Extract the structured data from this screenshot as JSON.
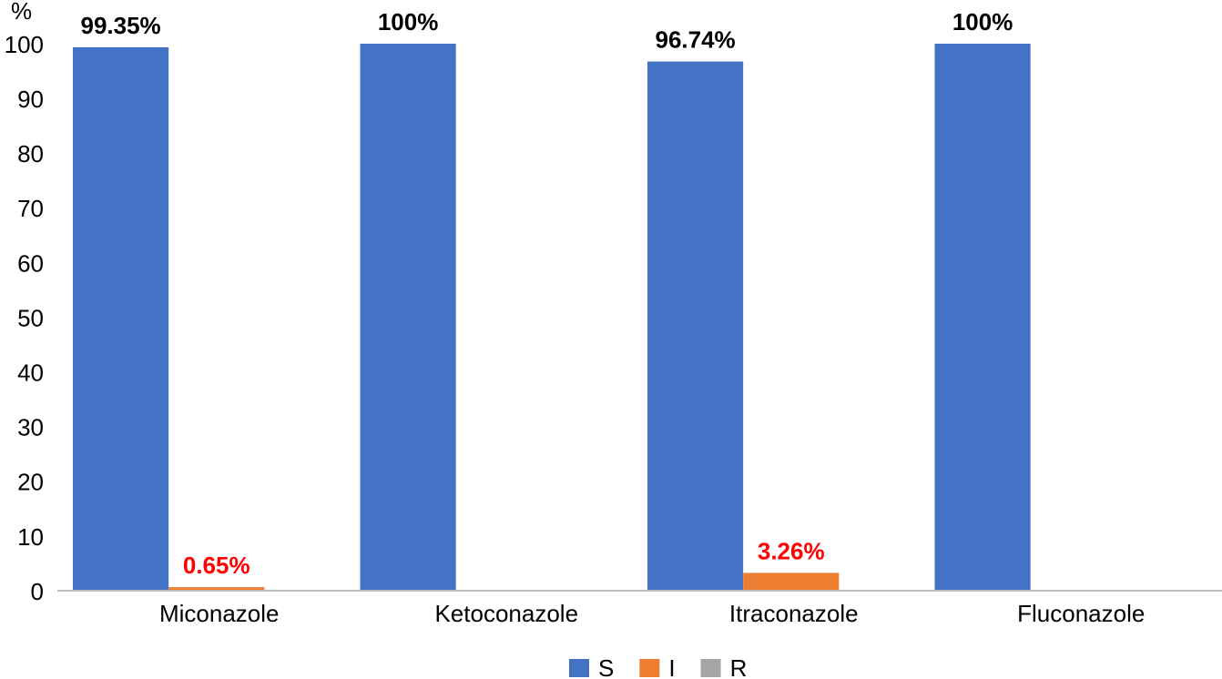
{
  "chart_data": {
    "type": "bar",
    "y_label": "%",
    "categories": [
      "Miconazole",
      "Ketoconazole",
      "Itraconazole",
      "Fluconazole"
    ],
    "series": [
      {
        "name": "S",
        "color": "#4472c4",
        "label_color": "#000000",
        "values": [
          99.35,
          100,
          96.74,
          100
        ],
        "value_labels": [
          "99.35%",
          "100%",
          "96.74%",
          "100%"
        ]
      },
      {
        "name": "I",
        "color": "#ed7d31",
        "label_color": "#ff0000",
        "values": [
          0.65,
          0,
          3.26,
          0
        ],
        "value_labels": [
          "0.65%",
          null,
          "3.26%",
          null
        ]
      },
      {
        "name": "R",
        "color": "#a5a5a5",
        "label_color": "#000000",
        "values": [
          0,
          0,
          0,
          0
        ],
        "value_labels": [
          null,
          null,
          null,
          null
        ]
      }
    ],
    "ylim": [
      0,
      100
    ],
    "yticks": [
      0,
      10,
      20,
      30,
      40,
      50,
      60,
      70,
      80,
      90,
      100
    ],
    "grid": false,
    "legend": "bottom"
  }
}
